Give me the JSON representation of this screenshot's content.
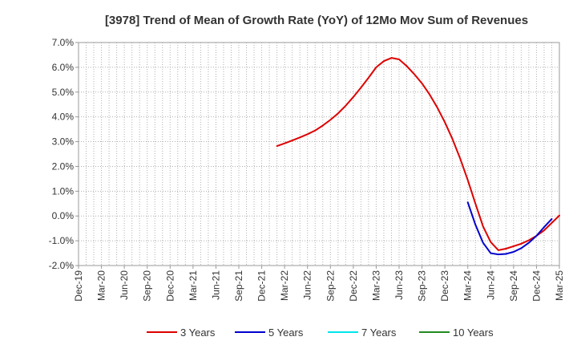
{
  "chart_data": {
    "type": "line",
    "title": "[3978]  Trend of Mean of Growth Rate (YoY) of 12Mo Mov Sum of Revenues",
    "xlabel": "",
    "ylabel": "",
    "ylim": [
      -2.0,
      7.0
    ],
    "y_ticks": [
      "7.0%",
      "6.0%",
      "5.0%",
      "4.0%",
      "3.0%",
      "2.0%",
      "1.0%",
      "0.0%",
      "-1.0%",
      "-2.0%"
    ],
    "x_ticks": [
      "Dec-19",
      "Mar-20",
      "Jun-20",
      "Sep-20",
      "Dec-20",
      "Mar-21",
      "Jun-21",
      "Sep-21",
      "Dec-21",
      "Mar-22",
      "Jun-22",
      "Sep-22",
      "Dec-22",
      "Mar-23",
      "Jun-23",
      "Sep-23",
      "Dec-23",
      "Mar-24",
      "Jun-24",
      "Sep-24",
      "Dec-24",
      "Mar-25"
    ],
    "x_start": "2019-12",
    "grid": true,
    "legend_position": "bottom",
    "series": [
      {
        "name": "3 Years",
        "color": "#dd0000",
        "start_index": 26,
        "values": [
          2.82,
          2.93,
          3.05,
          3.17,
          3.3,
          3.45,
          3.65,
          3.88,
          4.14,
          4.45,
          4.8,
          5.18,
          5.58,
          6.0,
          6.25,
          6.38,
          6.32,
          6.05,
          5.72,
          5.35,
          4.9,
          4.38,
          3.78,
          3.1,
          2.32,
          1.45,
          0.5,
          -0.42,
          -1.05,
          -1.38,
          -1.32,
          -1.22,
          -1.12,
          -0.98,
          -0.8,
          -0.58,
          -0.28,
          0.02
        ]
      },
      {
        "name": "5 Years",
        "color": "#0000cc",
        "start_index": 51,
        "values": [
          0.55,
          -0.35,
          -1.08,
          -1.5,
          -1.55,
          -1.53,
          -1.45,
          -1.3,
          -1.08,
          -0.8,
          -0.45,
          -0.12
        ]
      },
      {
        "name": "7 Years",
        "color": "#00e5ee",
        "start_index": 0,
        "values": []
      },
      {
        "name": "10 Years",
        "color": "#228b22",
        "start_index": 0,
        "values": []
      }
    ]
  }
}
